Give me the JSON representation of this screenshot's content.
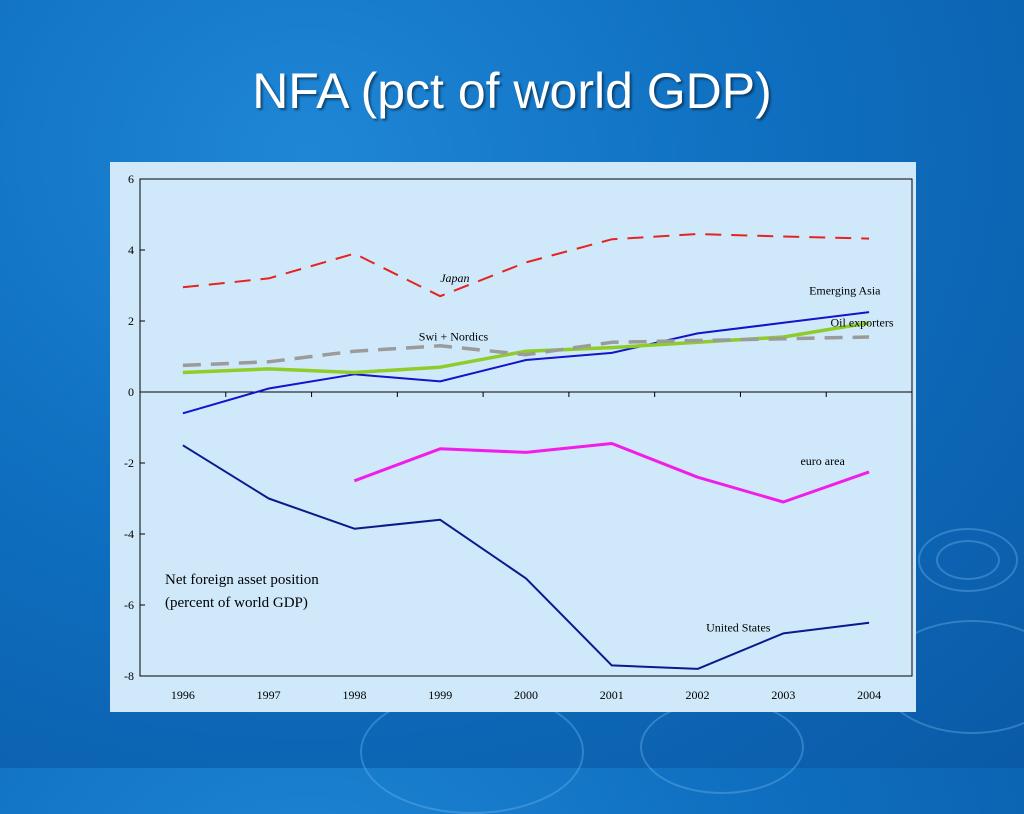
{
  "slide": {
    "title": "NFA (pct of world GDP)"
  },
  "chart_data": {
    "type": "line",
    "title": "",
    "annotation_lines": [
      "Net foreign asset position",
      "(percent of world GDP)"
    ],
    "xlabel": "",
    "ylabel": "",
    "x": [
      1996,
      1997,
      1998,
      1999,
      2000,
      2001,
      2002,
      2003,
      2004
    ],
    "ylim": [
      -8,
      6
    ],
    "yticks": [
      -8,
      -6,
      -4,
      -2,
      0,
      2,
      4,
      6
    ],
    "grid": false,
    "series": [
      {
        "name": "Japan",
        "italic": true,
        "color": "#e52420",
        "dash": "16 10",
        "width": 2,
        "values": [
          2.95,
          3.2,
          3.9,
          2.7,
          3.65,
          4.3,
          4.45,
          4.38,
          4.32
        ],
        "label_pos": [
          1999,
          3.1
        ]
      },
      {
        "name": "Emerging Asia",
        "color": "#1414c8",
        "dash": "",
        "width": 2,
        "values": [
          -0.6,
          0.1,
          0.5,
          0.3,
          0.9,
          1.1,
          1.65,
          1.95,
          2.25
        ],
        "label_pos": [
          2003.3,
          2.75
        ]
      },
      {
        "name": "Oil exporters",
        "color": "#8ecc2a",
        "dash": "",
        "width": 3.5,
        "values": [
          0.55,
          0.65,
          0.55,
          0.7,
          1.15,
          1.25,
          1.4,
          1.55,
          1.95
        ],
        "label_pos": [
          2003.55,
          1.85
        ]
      },
      {
        "name": "Swi + Nordics",
        "color": "#9b9b9b",
        "dash": "18 10",
        "width": 3.5,
        "values": [
          0.75,
          0.85,
          1.15,
          1.3,
          1.05,
          1.4,
          1.45,
          1.5,
          1.55
        ],
        "label_pos": [
          1998.75,
          1.45
        ]
      },
      {
        "name": "euro area",
        "color": "#f01ee8",
        "dash": "",
        "width": 3,
        "values": [
          null,
          null,
          -2.5,
          -1.6,
          -1.7,
          -1.45,
          -2.4,
          -3.1,
          -2.25
        ],
        "label_pos": [
          2003.2,
          -2.05
        ]
      },
      {
        "name": "United States",
        "color": "#0a1a8c",
        "dash": "",
        "width": 2,
        "values": [
          -1.5,
          -3.0,
          -3.85,
          -3.6,
          -5.25,
          -7.7,
          -7.8,
          -6.8,
          -6.5
        ],
        "label_pos": [
          2002.1,
          -6.75
        ]
      }
    ]
  }
}
